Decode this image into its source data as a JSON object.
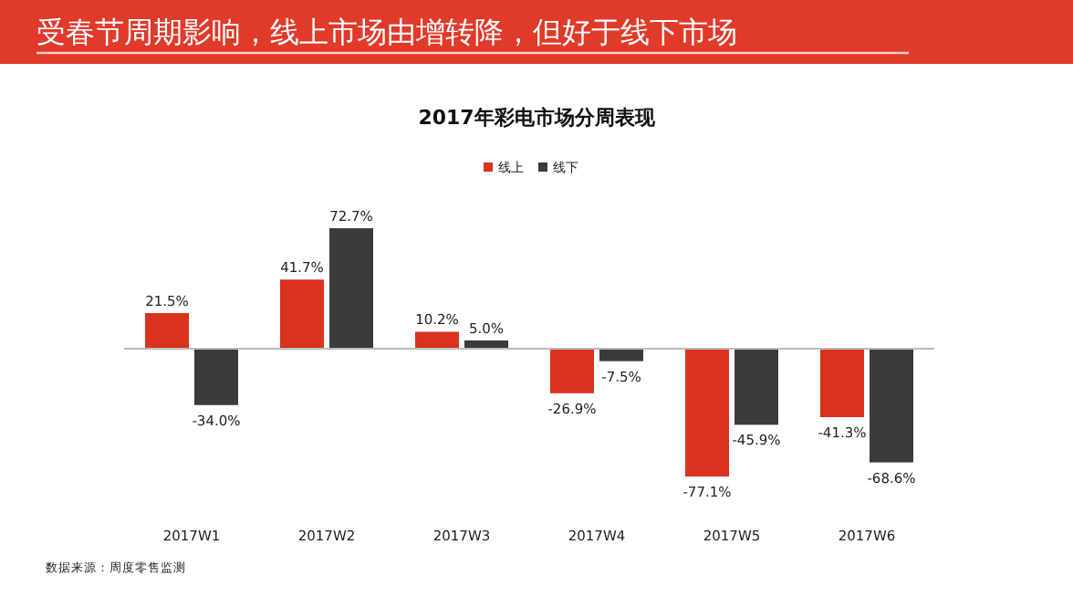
{
  "chart_data": {
    "type": "bar",
    "title": "受春节周期影响，线上市场由增转降，但好于线下市场",
    "subtitle": "2017年彩电市场分周表现",
    "categories": [
      "2017W1",
      "2017W2",
      "2017W3",
      "2017W4",
      "2017W5",
      "2017W6"
    ],
    "series": [
      {
        "name": "线上",
        "color": "#d9321f",
        "values": [
          21.5,
          41.7,
          10.2,
          -26.9,
          -77.1,
          -41.3
        ],
        "value_labels": [
          "21.5%",
          "41.7%",
          "10.2%",
          "-26.9%",
          "-77.1%",
          "-41.3%"
        ]
      },
      {
        "name": "线下",
        "color": "#3b3a3d",
        "values": [
          -34.0,
          72.7,
          5.0,
          -7.5,
          -45.9,
          -68.6
        ],
        "value_labels": [
          "-34.0%",
          "72.7%",
          "5.0%",
          "-7.5%",
          "-45.9%",
          "-68.6%"
        ]
      }
    ],
    "legend": "top",
    "annotations": [
      "数据来源：周度零售监测"
    ]
  }
}
